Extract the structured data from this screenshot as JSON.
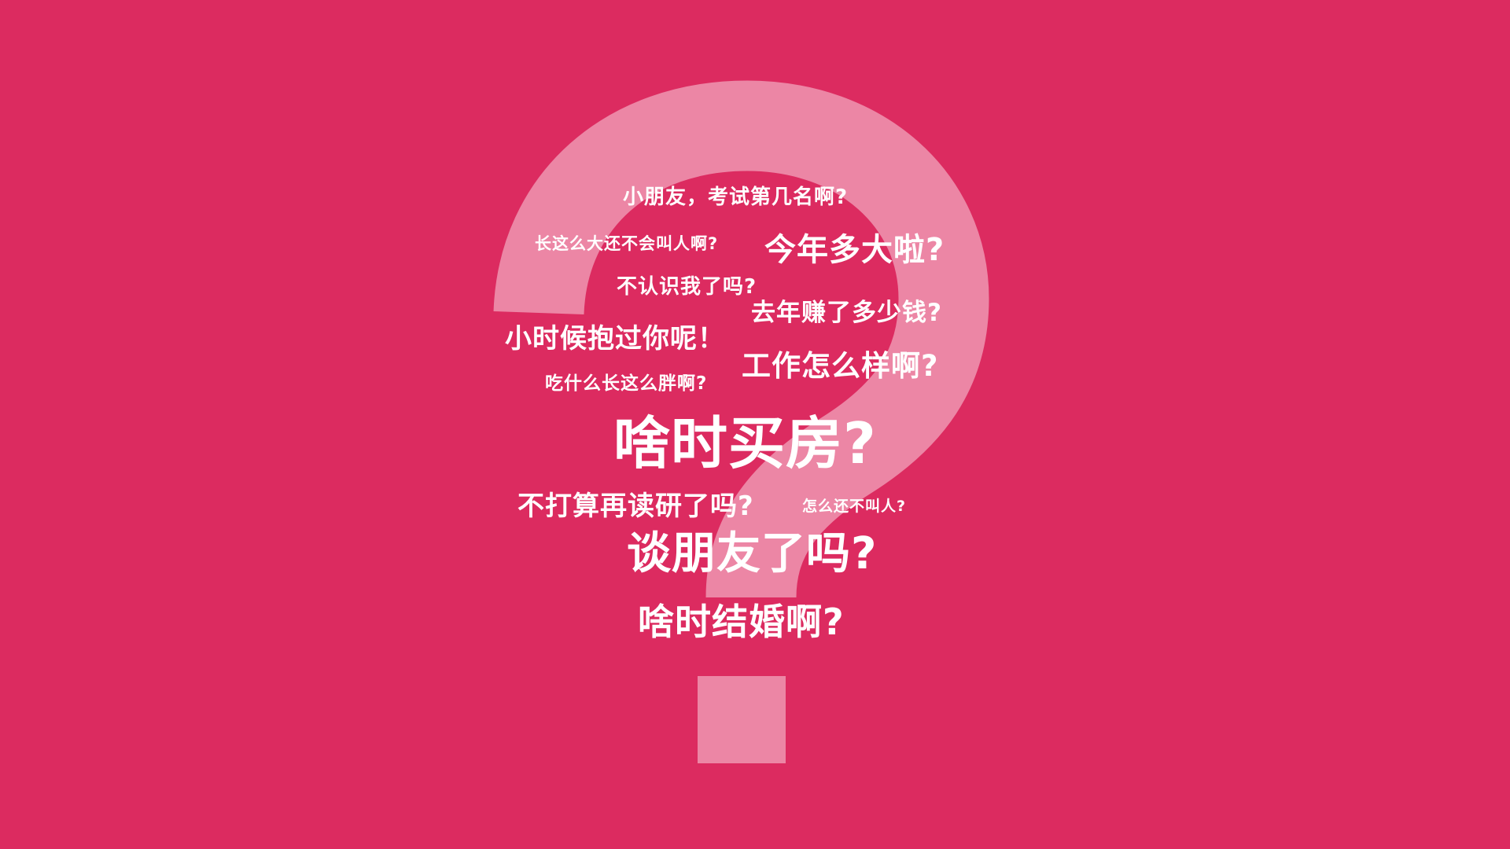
{
  "colors": {
    "background": "#dc2b60",
    "question_mark": "#ec86a5",
    "text": "#ffffff"
  },
  "decoration": {
    "icon": "question-mark-icon"
  },
  "questions": [
    "小朋友，考试第几名啊?",
    "长这么大还不会叫人啊?",
    "今年多大啦?",
    "不认识我了吗?",
    "去年赚了多少钱?",
    "小时候抱过你呢！",
    "工作怎么样啊?",
    "吃什么长这么胖啊?",
    "啥时买房?",
    "不打算再读研了吗?",
    "怎么还不叫人?",
    "谈朋友了吗?",
    "啥时结婚啊?"
  ]
}
